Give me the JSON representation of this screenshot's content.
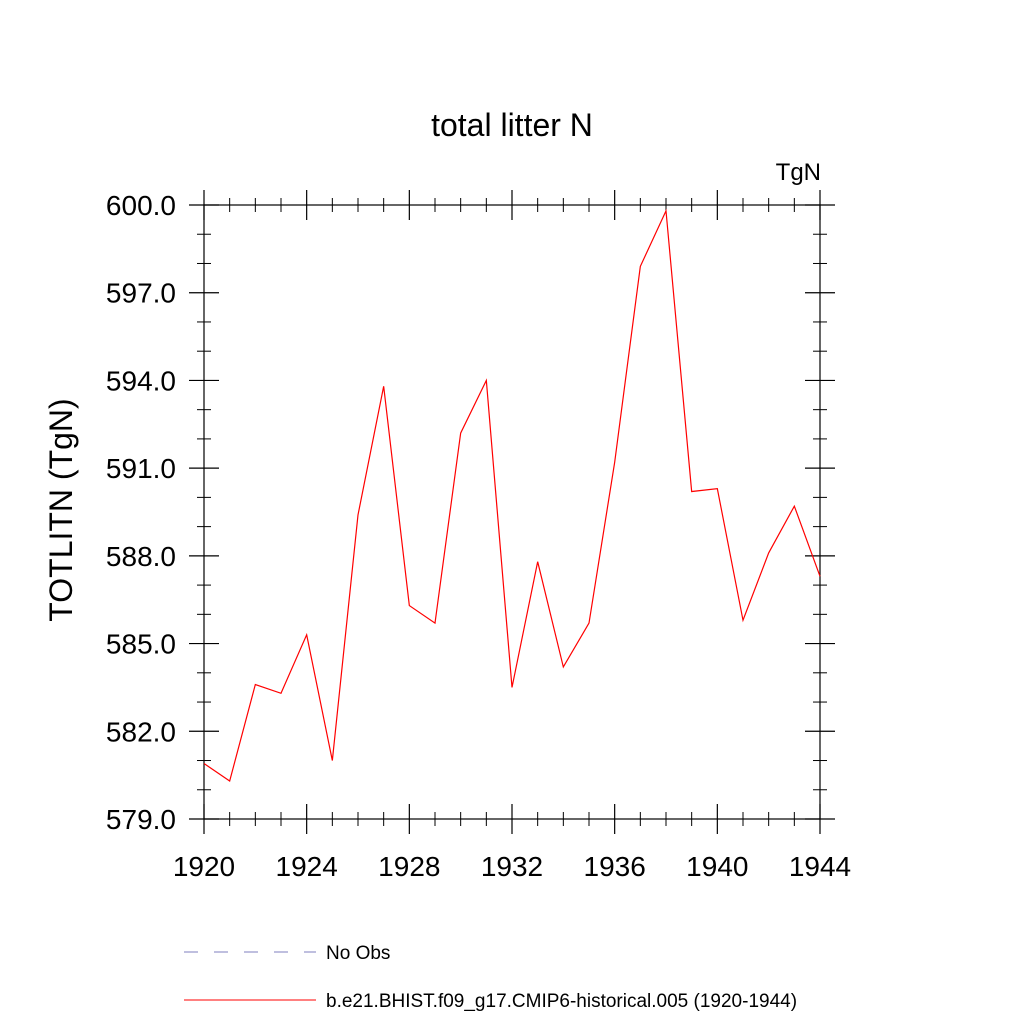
{
  "chart_data": {
    "type": "line",
    "title": "total litter N",
    "units_label": "TgN",
    "ylabel": "TOTLITN  (TgN)",
    "xlabel": "",
    "xlim": [
      1920,
      1944
    ],
    "ylim": [
      579.0,
      600.0
    ],
    "x_ticks": [
      1920,
      1924,
      1928,
      1932,
      1936,
      1940,
      1944
    ],
    "x_tick_labels": [
      "1920",
      "1924",
      "1928",
      "1932",
      "1936",
      "1940",
      "1944"
    ],
    "y_ticks": [
      579.0,
      582.0,
      585.0,
      588.0,
      591.0,
      594.0,
      597.0,
      600.0
    ],
    "y_tick_labels": [
      "579.0",
      "582.0",
      "585.0",
      "588.0",
      "591.0",
      "594.0",
      "597.0",
      "600.0"
    ],
    "grid": false,
    "legend_position": "bottom",
    "series": [
      {
        "name": "b.e21.BHIST.f09_g17.CMIP6-historical.005 (1920-1944)",
        "color": "#ff0000",
        "dash": "solid",
        "x": [
          1920,
          1921,
          1922,
          1923,
          1924,
          1925,
          1926,
          1927,
          1928,
          1929,
          1930,
          1931,
          1932,
          1933,
          1934,
          1935,
          1936,
          1937,
          1938,
          1939,
          1940,
          1941,
          1942,
          1943,
          1944
        ],
        "y": [
          580.9,
          580.3,
          583.6,
          583.3,
          585.3,
          581.0,
          589.4,
          593.8,
          586.3,
          585.7,
          592.2,
          594.0,
          583.5,
          587.8,
          584.2,
          585.7,
          591.2,
          597.9,
          599.8,
          590.2,
          590.3,
          585.8,
          588.1,
          589.7,
          587.3
        ]
      }
    ],
    "legend": [
      {
        "label": "No Obs",
        "color": "#7f7fbf",
        "dash": "dashed"
      },
      {
        "label": "b.e21.BHIST.f09_g17.CMIP6-historical.005 (1920-1944)",
        "color": "#ff0000",
        "dash": "solid"
      }
    ]
  }
}
